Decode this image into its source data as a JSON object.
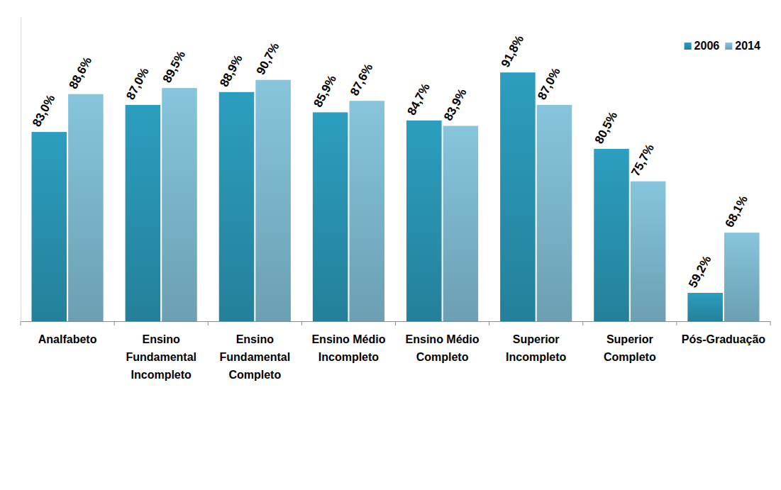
{
  "chart_data": {
    "type": "bar",
    "categories": [
      "Analfabeto",
      "Ensino Fundamental Incompleto",
      "Ensino Fundamental Completo",
      "Ensino Médio Incompleto",
      "Ensino Médio Completo",
      "Superior Incompleto",
      "Superior Completo",
      "Pós-Graduação"
    ],
    "series": [
      {
        "name": "2006",
        "color": "#2c9ebf",
        "values": [
          83.0,
          87.0,
          88.9,
          85.9,
          84.7,
          91.8,
          80.5,
          59.2
        ],
        "value_labels": [
          "83,0%",
          "87,0%",
          "88,9%",
          "85,9%",
          "84,7%",
          "91,8%",
          "80,5%",
          "59,2%"
        ]
      },
      {
        "name": "2014",
        "color": "#86c5dc",
        "values": [
          88.6,
          89.5,
          90.7,
          87.6,
          83.9,
          87.0,
          75.7,
          68.1
        ],
        "value_labels": [
          "88,6%",
          "89,5%",
          "90,7%",
          "87,6%",
          "83,9%",
          "87,0%",
          "75,7%",
          "68,1%"
        ]
      }
    ],
    "ylim": [
      55,
      100
    ],
    "data_labels": true,
    "tick_labels": "x",
    "legend": "top-right",
    "grid": false
  }
}
